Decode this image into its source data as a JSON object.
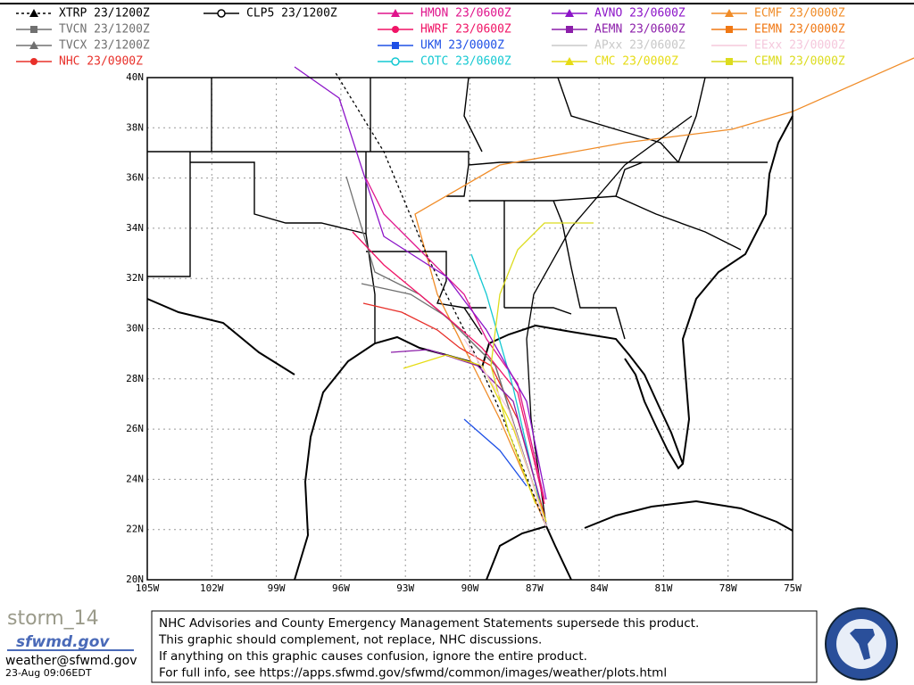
{
  "legend": [
    [
      {
        "label": "XTRP 23/1200Z",
        "color": "#000000",
        "marker": "triangle",
        "dash": true
      },
      {
        "label": "TVCN 23/1200Z",
        "color": "#707070",
        "marker": "square"
      },
      {
        "label": "TVCX 23/1200Z",
        "color": "#707070",
        "marker": "triangle"
      },
      {
        "label": "NHC 23/0900Z",
        "color": "#e8302a",
        "marker": "circle"
      }
    ],
    [
      {
        "label": "CLP5 23/1200Z",
        "color": "#000000",
        "marker": "ring"
      }
    ],
    [
      {
        "label": "HMON 23/0600Z",
        "color": "#e0148c",
        "marker": "triangle"
      },
      {
        "label": "HWRF 23/0600Z",
        "color": "#f01466",
        "marker": "circle"
      },
      {
        "label": "UKM 23/0000Z",
        "color": "#1e50e6",
        "marker": "square"
      },
      {
        "label": "COTC 23/0600Z",
        "color": "#14c8d2",
        "marker": "ring"
      }
    ],
    [
      {
        "label": "AVNO 23/0600Z",
        "color": "#8c14c8",
        "marker": "triangle"
      },
      {
        "label": "AEMN 23/0600Z",
        "color": "#8c1eaa",
        "marker": "square"
      },
      {
        "label": "APxx 23/0600Z",
        "color": "#c8c8c8",
        "marker": "none"
      },
      {
        "label": "CMC 23/0000Z",
        "color": "#e6dc14",
        "marker": "triangle"
      }
    ],
    [
      {
        "label": "ECMF 23/0000Z",
        "color": "#f08c28",
        "marker": "triangle"
      },
      {
        "label": "EEMN 23/0000Z",
        "color": "#f07814",
        "marker": "square"
      },
      {
        "label": "EExx 23/0000Z",
        "color": "#f5c8dc",
        "marker": "none"
      },
      {
        "label": "CEMN 23/0000Z",
        "color": "#dcdc1e",
        "marker": "square"
      }
    ]
  ],
  "map": {
    "y_labels": [
      "40N",
      "38N",
      "36N",
      "34N",
      "32N",
      "30N",
      "28N",
      "26N",
      "24N",
      "22N",
      "20N"
    ],
    "x_labels": [
      "105W",
      "102W",
      "99W",
      "96W",
      "93W",
      "90W",
      "87W",
      "84W",
      "81W",
      "78W",
      "75W"
    ]
  },
  "footer": {
    "storm": "storm_14",
    "site": "sfwmd.gov",
    "email": "weather@sfwmd.gov",
    "date": "23-Aug 09:06EDT",
    "disclaimer": [
      "NHC Advisories and County Emergency Management Statements supersede this product.",
      "This graphic should complement, not replace, NHC discussions.",
      "If anything on this graphic causes confusion, ignore the entire product.",
      "For full info, see  https://apps.sfwmd.gov/sfwmd/common/images/weather/plots.html"
    ]
  }
}
